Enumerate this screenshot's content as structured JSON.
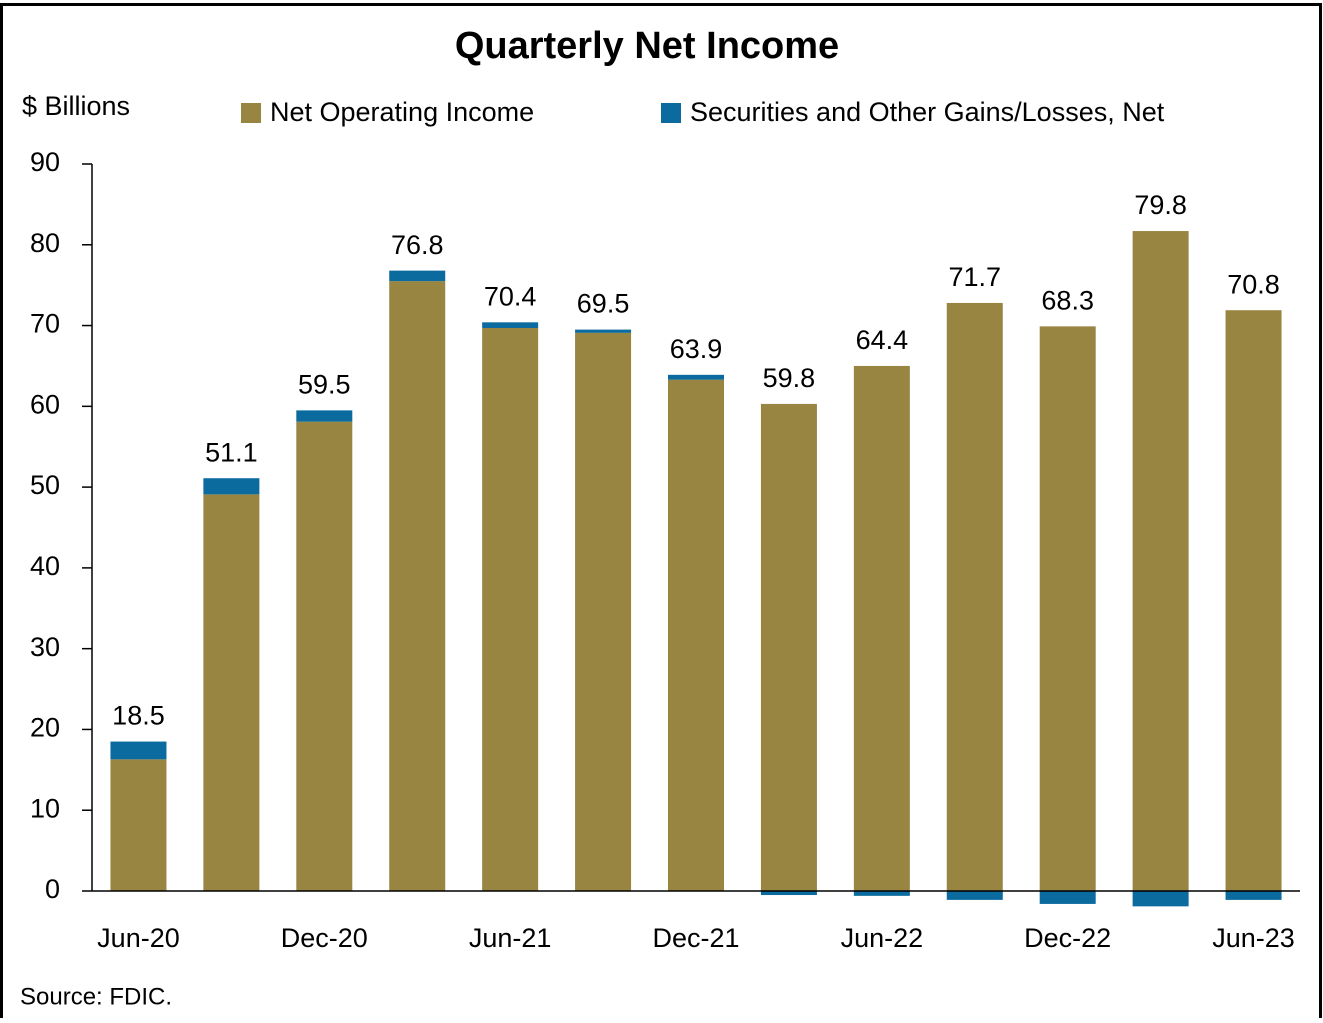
{
  "chart_data": {
    "type": "stacked_bar",
    "title": "Quarterly Net Income",
    "y_label": "$ Billions",
    "source": "Source: FDIC.",
    "categories": [
      "Jun-20",
      null,
      "Dec-20",
      null,
      "Jun-21",
      null,
      "Dec-21",
      null,
      "Jun-22",
      null,
      "Dec-22",
      null,
      "Jun-23"
    ],
    "series": [
      {
        "name": "Net Operating Income",
        "color": "#998542",
        "values": [
          16.3,
          49.1,
          58.1,
          75.5,
          69.7,
          69.1,
          63.3,
          60.3,
          65.0,
          72.8,
          69.9,
          81.7,
          71.9
        ]
      },
      {
        "name": "Securities and Other Gains/Losses, Net",
        "color": "#0b6a9e",
        "values": [
          2.2,
          2.0,
          1.4,
          1.3,
          0.7,
          0.4,
          0.6,
          -0.5,
          -0.6,
          -1.1,
          -1.6,
          -1.9,
          -1.1
        ]
      }
    ],
    "totals": [
      18.5,
      51.1,
      59.5,
      76.8,
      70.4,
      69.5,
      63.9,
      59.8,
      64.4,
      71.7,
      68.3,
      79.8,
      70.8
    ],
    "ylim": [
      0,
      90
    ],
    "yticks": [
      0,
      10,
      20,
      30,
      40,
      50,
      60,
      70,
      80,
      90
    ]
  }
}
